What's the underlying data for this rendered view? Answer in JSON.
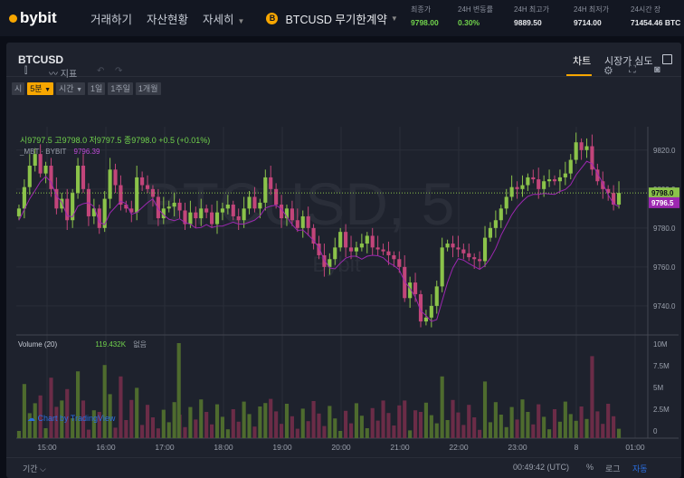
{
  "topbar": {
    "logo": "bybit",
    "nav": [
      {
        "label": "거래하기"
      },
      {
        "label": "자산현황"
      },
      {
        "label": "자세히"
      }
    ],
    "symbol": "BTCUSD 무기한계약",
    "coin_glyph": "B",
    "stats": [
      {
        "label": "최종가",
        "value": "9798.00"
      },
      {
        "label": "24H 변동률",
        "value": "0.30%"
      },
      {
        "label": "24H 최고가",
        "value": "9889.50"
      },
      {
        "label": "24H 최저가",
        "value": "9714.00"
      },
      {
        "label": "24시간 장",
        "value": "71454.46 BTC"
      }
    ]
  },
  "panel": {
    "title": "BTCUSD",
    "tabs": [
      {
        "label": "차트"
      },
      {
        "label": "시장가 심도"
      }
    ],
    "intervals": [
      {
        "label": "시"
      },
      {
        "label": "5분"
      },
      {
        "label": "시간"
      },
      {
        "label": "1일"
      },
      {
        "label": "1주일"
      },
      {
        "label": "1개월"
      }
    ],
    "toolbar": {
      "indicators": "지표",
      "undo": "↶",
      "redo": "↷"
    }
  },
  "legend": {
    "ohlc": "시9797.5 고9798.0 저9797.5 종9798.0 +0.5 (+0.01%)",
    "ma": "_MBT · BYBIT",
    "ma_value": "9796.39",
    "volume": "Volume (20)",
    "volume_value": "119.432K",
    "volume_extra": "없음",
    "watermark": "BTCUSD, 5",
    "watermark2": "Bybit",
    "tv": "Chart by TradingView"
  },
  "chart_data": {
    "type": "candlestick",
    "y_axis": {
      "ticks": [
        "9820.0",
        "9800.0",
        "9780.0",
        "9760.0",
        "9740.0"
      ],
      "ylim": [
        9726,
        9832
      ]
    },
    "x_axis": {
      "ticks": [
        "15:00",
        "16:00",
        "17:00",
        "18:00",
        "19:00",
        "20:00",
        "21:00",
        "22:00",
        "23:00",
        "8",
        "01:00"
      ]
    },
    "last_price_label": "9798.0",
    "ma_label": "9796.5",
    "volume_axis": {
      "ticks": [
        "10M",
        "7.5M",
        "5M",
        "2.5M",
        "0"
      ]
    },
    "close": [
      9790,
      9801,
      9812,
      9818,
      9808,
      9812,
      9800,
      9790,
      9795,
      9784,
      9798,
      9812,
      9800,
      9786,
      9790,
      9780,
      9795,
      9810,
      9802,
      9792,
      9790,
      9788,
      9806,
      9802,
      9800,
      9796,
      9785,
      9790,
      9791,
      9793,
      9789,
      9782,
      9788,
      9785,
      9790,
      9788,
      9782,
      9788,
      9790,
      9792,
      9786,
      9784,
      9790,
      9796,
      9790,
      9793,
      9806,
      9800,
      9792,
      9785,
      9790,
      9784,
      9780,
      9786,
      9780,
      9772,
      9766,
      9760,
      9764,
      9770,
      9778,
      9770,
      9768,
      9770,
      9772,
      9776,
      9770,
      9769,
      9768,
      9766,
      9764,
      9760,
      9744,
      9752,
      9746,
      9732,
      9734,
      9740,
      9750,
      9770,
      9772,
      9770,
      9769,
      9767,
      9765,
      9764,
      9763,
      9775,
      9780,
      9784,
      9790,
      9796,
      9801,
      9800,
      9802,
      9806,
      9805,
      9800,
      9804,
      9805,
      9804,
      9806,
      9808,
      9815,
      9824,
      9820,
      9822,
      9810,
      9804,
      9800,
      9798,
      9792,
      9798
    ],
    "volume_range": [
      0,
      10000000
    ]
  }
}
